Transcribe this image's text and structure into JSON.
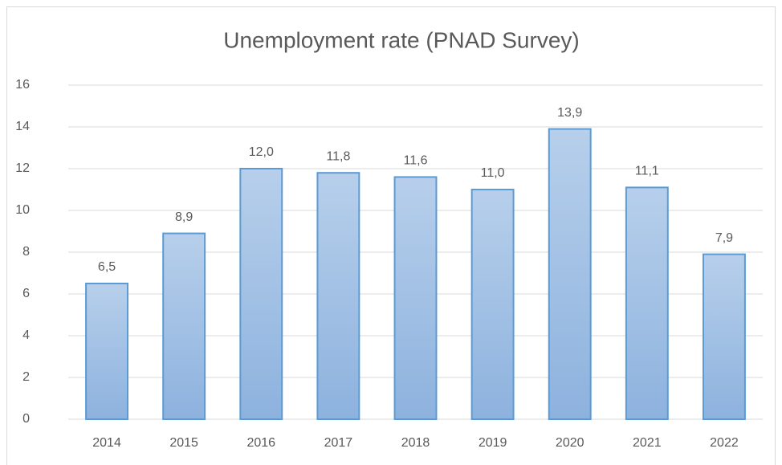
{
  "chart_data": {
    "type": "bar",
    "title": "Unemployment rate (PNAD Survey)",
    "categories": [
      "2014",
      "2015",
      "2016",
      "2017",
      "2018",
      "2019",
      "2020",
      "2021",
      "2022"
    ],
    "values": [
      6.5,
      8.9,
      12.0,
      11.8,
      11.6,
      11.0,
      13.9,
      11.1,
      7.9
    ],
    "value_labels": [
      "6,5",
      "8,9",
      "12,0",
      "11,8",
      "11,6",
      "11,0",
      "13,9",
      "11,1",
      "7,9"
    ],
    "color": "#5b9bd5",
    "ylim": [
      0,
      16
    ],
    "yticks": [
      0,
      2,
      4,
      6,
      8,
      10,
      12,
      14,
      16
    ],
    "grid": true
  }
}
